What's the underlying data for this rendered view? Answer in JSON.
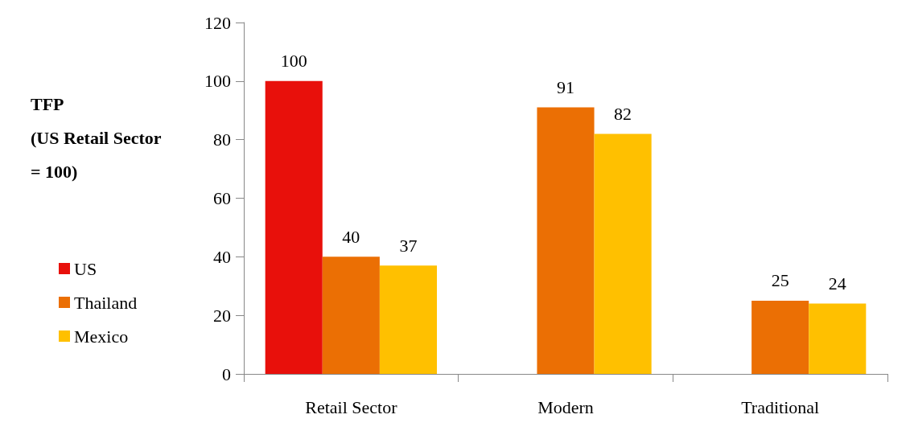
{
  "chart_data": {
    "type": "bar",
    "ylabel": "TFP\n(US Retail Sector\n= 100)",
    "categories": [
      "Retail Sector",
      "Modern",
      "Traditional"
    ],
    "series": [
      {
        "name": "US",
        "color": "#e8100b",
        "values": [
          100,
          null,
          null
        ]
      },
      {
        "name": "Thailand",
        "color": "#eb6f04",
        "values": [
          40,
          91,
          25
        ]
      },
      {
        "name": "Mexico",
        "color": "#ffc000",
        "values": [
          37,
          82,
          24
        ]
      }
    ],
    "ylim": [
      0,
      120
    ],
    "yticks": [
      0,
      20,
      40,
      60,
      80,
      100,
      120
    ],
    "data_labels": true,
    "grid": false,
    "legend": "left"
  }
}
